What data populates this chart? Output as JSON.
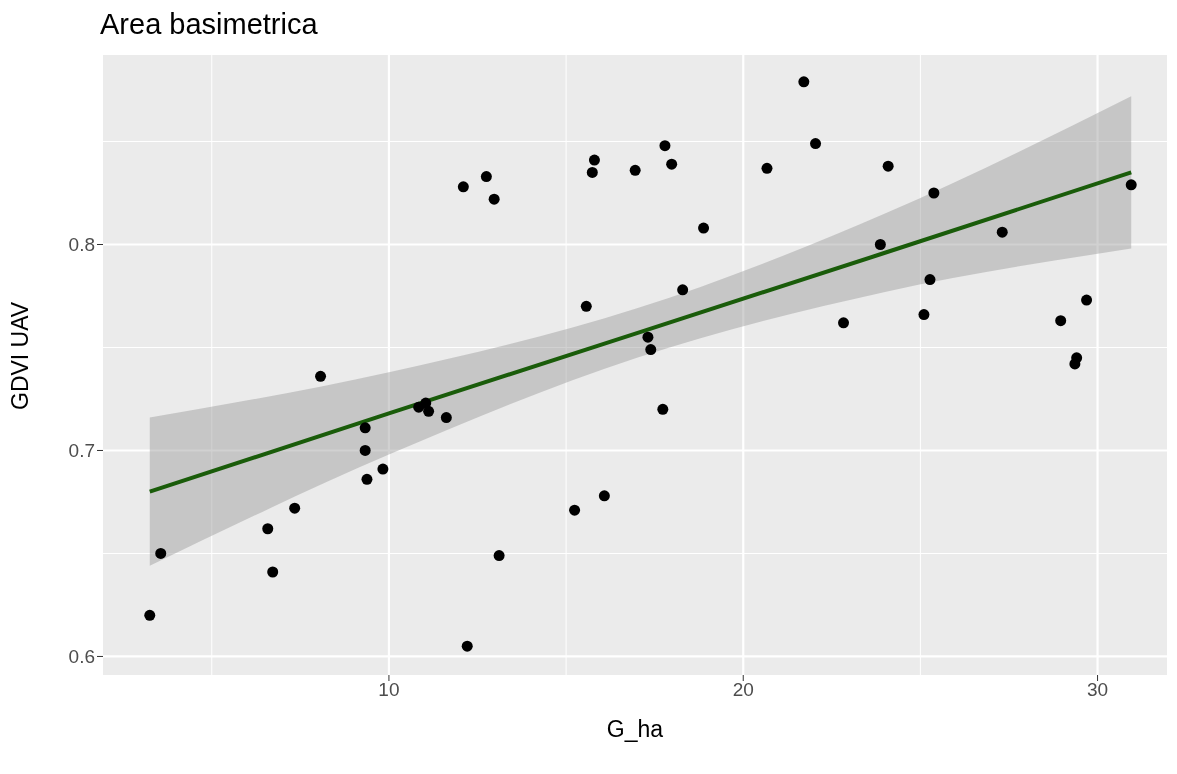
{
  "chart_data": {
    "type": "scatter",
    "title": "Area basimetrica",
    "xlabel": "G_ha",
    "ylabel": "GDVI UAV",
    "xlim": [
      1.93,
      31.96
    ],
    "ylim": [
      0.591,
      0.892
    ],
    "xticks": [
      10,
      20,
      30
    ],
    "yticks": [
      0.6,
      0.7,
      0.8
    ],
    "grid": true,
    "series": [
      {
        "color": "#000000",
        "x": [
          3.25,
          3.56,
          6.58,
          6.72,
          7.34,
          8.07,
          9.33,
          9.33,
          9.38,
          9.83,
          10.84,
          11.04,
          11.12,
          11.62,
          12.1,
          12.21,
          12.75,
          12.97,
          13.11,
          15.24,
          15.57,
          15.74,
          15.8,
          16.08,
          16.95,
          17.31,
          17.39,
          17.73,
          17.79,
          17.98,
          18.29,
          18.88,
          20.67,
          21.71,
          22.04,
          22.83,
          23.87,
          24.09,
          25.1,
          25.27,
          25.38,
          27.31,
          28.96,
          29.36,
          29.41,
          29.69,
          30.95
        ],
        "values": [
          0.62,
          0.65,
          0.662,
          0.641,
          0.672,
          0.736,
          0.711,
          0.7,
          0.686,
          0.691,
          0.721,
          0.723,
          0.719,
          0.716,
          0.828,
          0.605,
          0.833,
          0.822,
          0.649,
          0.671,
          0.77,
          0.835,
          0.841,
          0.678,
          0.836,
          0.755,
          0.749,
          0.72,
          0.848,
          0.839,
          0.778,
          0.808,
          0.837,
          0.879,
          0.849,
          0.762,
          0.8,
          0.838,
          0.766,
          0.783,
          0.825,
          0.806,
          0.763,
          0.742,
          0.745,
          0.773,
          0.829
        ]
      },
      {
        "type": "line",
        "color": "#1a5c0a",
        "x": [
          3.25,
          10,
          17,
          24,
          30.95
        ],
        "values": [
          0.68,
          0.718,
          0.757,
          0.796,
          0.835
        ],
        "lower": [
          0.644,
          0.698,
          0.745,
          0.777,
          0.798
        ],
        "upper": [
          0.716,
          0.738,
          0.769,
          0.815,
          0.872
        ]
      }
    ]
  }
}
